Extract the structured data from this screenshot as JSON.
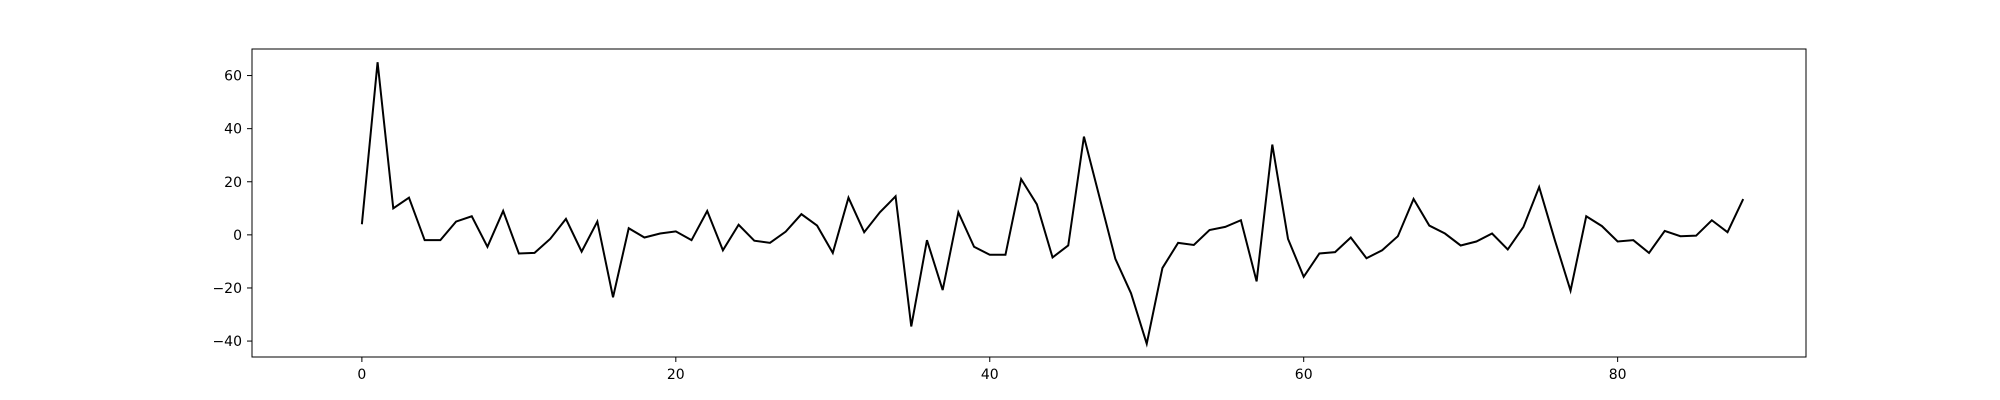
{
  "chart_data": {
    "type": "line",
    "title": "",
    "xlabel": "",
    "ylabel": "",
    "xlim": [
      -7,
      92
    ],
    "ylim": [
      -46,
      70
    ],
    "x_ticks": [
      0,
      20,
      40,
      60,
      80
    ],
    "y_ticks": [
      -40,
      -20,
      0,
      20,
      40,
      60
    ],
    "x_tick_labels": [
      "0",
      "20",
      "40",
      "60",
      "80"
    ],
    "y_tick_labels": [
      "−40",
      "−20",
      "0",
      "20",
      "40",
      "60"
    ],
    "grid": false,
    "legend": "none",
    "line_color": "#000000",
    "series": [
      {
        "values": [
          4,
          65,
          10,
          14,
          -2,
          -2,
          5,
          7,
          -4.5,
          9,
          -7,
          -6.8,
          -1.5,
          6,
          -6.3,
          5,
          -23.5,
          2.5,
          -1,
          0.5,
          1.3,
          -2,
          9,
          -5.8,
          3.8,
          -2.2,
          -3,
          1.2,
          7.8,
          3.5,
          -6.8,
          14,
          1,
          8.5,
          14.5,
          -34.5,
          -2,
          -20.8,
          8.5,
          -4.5,
          -7.5,
          -7.5,
          21,
          11.5,
          -8.5,
          -4,
          37,
          14,
          -9,
          -22,
          -41,
          -12.5,
          -3,
          -3.8,
          1.8,
          3,
          5.5,
          -17.5,
          34,
          -1.5,
          -15.8,
          -7,
          -6.5,
          -1,
          -8.8,
          -5.8,
          -0.5,
          13.5,
          3.5,
          0.5,
          -4,
          -2.5,
          0.5,
          -5.5,
          3,
          18,
          -2,
          -21,
          7,
          3.3,
          -2.5,
          -2,
          -6.8,
          1.5,
          -0.5,
          -0.3,
          5.5,
          1,
          13.5
        ]
      }
    ]
  }
}
